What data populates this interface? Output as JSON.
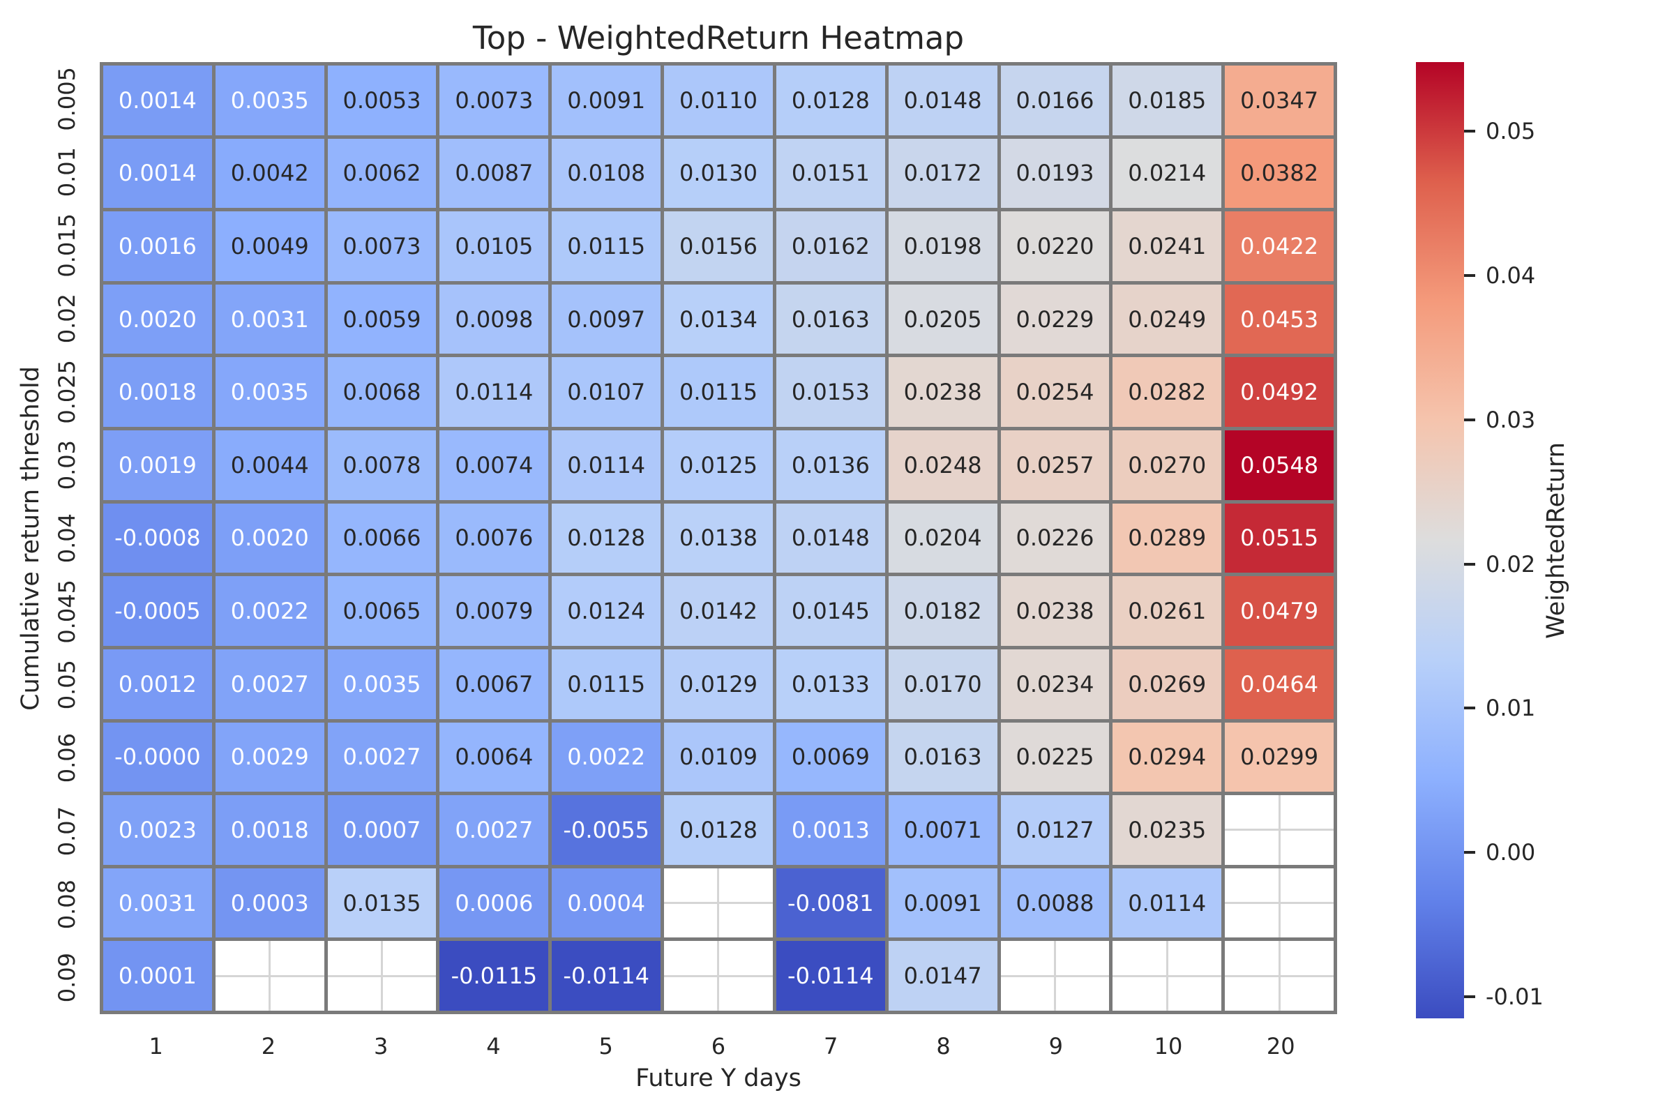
{
  "chart_data": {
    "type": "heatmap",
    "title": "Top - WeightedReturn Heatmap",
    "xlabel": "Future Y days",
    "ylabel": "Cumulative return threshold",
    "x_ticks": [
      "1",
      "2",
      "3",
      "4",
      "5",
      "6",
      "7",
      "8",
      "9",
      "10",
      "20"
    ],
    "y_ticks": [
      "0.005",
      "0.01",
      "0.015",
      "0.02",
      "0.025",
      "0.03",
      "0.04",
      "0.045",
      "0.05",
      "0.06",
      "0.07",
      "0.08",
      "0.09"
    ],
    "cells": [
      [
        "0.0014",
        "0.0035",
        "0.0053",
        "0.0073",
        "0.0091",
        "0.0110",
        "0.0128",
        "0.0148",
        "0.0166",
        "0.0185",
        "0.0347"
      ],
      [
        "0.0014",
        "0.0042",
        "0.0062",
        "0.0087",
        "0.0108",
        "0.0130",
        "0.0151",
        "0.0172",
        "0.0193",
        "0.0214",
        "0.0382"
      ],
      [
        "0.0016",
        "0.0049",
        "0.0073",
        "0.0105",
        "0.0115",
        "0.0156",
        "0.0162",
        "0.0198",
        "0.0220",
        "0.0241",
        "0.0422"
      ],
      [
        "0.0020",
        "0.0031",
        "0.0059",
        "0.0098",
        "0.0097",
        "0.0134",
        "0.0163",
        "0.0205",
        "0.0229",
        "0.0249",
        "0.0453"
      ],
      [
        "0.0018",
        "0.0035",
        "0.0068",
        "0.0114",
        "0.0107",
        "0.0115",
        "0.0153",
        "0.0238",
        "0.0254",
        "0.0282",
        "0.0492"
      ],
      [
        "0.0019",
        "0.0044",
        "0.0078",
        "0.0074",
        "0.0114",
        "0.0125",
        "0.0136",
        "0.0248",
        "0.0257",
        "0.0270",
        "0.0548"
      ],
      [
        "-0.0008",
        "0.0020",
        "0.0066",
        "0.0076",
        "0.0128",
        "0.0138",
        "0.0148",
        "0.0204",
        "0.0226",
        "0.0289",
        "0.0515"
      ],
      [
        "-0.0005",
        "0.0022",
        "0.0065",
        "0.0079",
        "0.0124",
        "0.0142",
        "0.0145",
        "0.0182",
        "0.0238",
        "0.0261",
        "0.0479"
      ],
      [
        "0.0012",
        "0.0027",
        "0.0035",
        "0.0067",
        "0.0115",
        "0.0129",
        "0.0133",
        "0.0170",
        "0.0234",
        "0.0269",
        "0.0464"
      ],
      [
        "-0.0000",
        "0.0029",
        "0.0027",
        "0.0064",
        "0.0022",
        "0.0109",
        "0.0069",
        "0.0163",
        "0.0225",
        "0.0294",
        "0.0299"
      ],
      [
        "0.0023",
        "0.0018",
        "0.0007",
        "0.0027",
        "-0.0055",
        "0.0128",
        "0.0013",
        "0.0071",
        "0.0127",
        "0.0235",
        null
      ],
      [
        "0.0031",
        "0.0003",
        "0.0135",
        "0.0006",
        "0.0004",
        null,
        "-0.0081",
        "0.0091",
        "0.0088",
        "0.0114",
        null
      ],
      [
        "0.0001",
        null,
        null,
        "-0.0115",
        "-0.0114",
        null,
        "-0.0114",
        "0.0147",
        null,
        null,
        null
      ]
    ],
    "vmin": -0.0115,
    "vmax": 0.0548,
    "colormap_name": "coolwarm",
    "colormap_anchors": [
      "#3B4CC0",
      "#6282EA",
      "#8DB0FE",
      "#B8D0F9",
      "#DDDDDD",
      "#F5C4AD",
      "#F49A7B",
      "#DE604D",
      "#B40426"
    ],
    "grid_line_color": "#7a7a7a",
    "empty_grid_line_color": "#d5d5d5",
    "annotation_text_dark": "#262626",
    "annotation_text_light": "#ffffff",
    "colorbar": {
      "label": "WeightedReturn",
      "ticks": [
        {
          "label": "0.05",
          "value": 0.05
        },
        {
          "label": "0.04",
          "value": 0.04
        },
        {
          "label": "0.03",
          "value": 0.03
        },
        {
          "label": "0.02",
          "value": 0.02
        },
        {
          "label": "0.01",
          "value": 0.01
        },
        {
          "label": "0.00",
          "value": 0.0
        },
        {
          "label": "-0.01",
          "value": -0.01
        }
      ]
    }
  }
}
